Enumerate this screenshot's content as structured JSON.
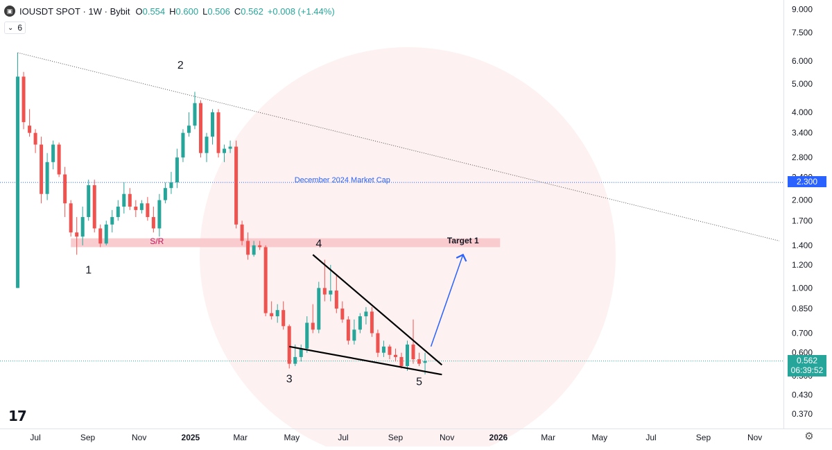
{
  "header": {
    "logo_icon": "coin-logo-icon",
    "symbol": "IOUSDT SPOT",
    "separator_1": "·",
    "interval": "1W",
    "separator_2": "·",
    "exchange": "Bybit",
    "open_label": "O",
    "open_value": "0.554",
    "high_label": "H",
    "high_value": "0.600",
    "low_label": "L",
    "low_value": "0.506",
    "close_label": "C",
    "close_value": "0.562",
    "change_value": "+0.008 (+1.44%)"
  },
  "indicator_chip": {
    "collapse_icon": "chevron-icon",
    "count": "6"
  },
  "branding": {
    "logo_text": "17",
    "settings_icon": "gear-icon"
  },
  "colors": {
    "up": "#26a69a",
    "down": "#ef5350",
    "current_price": "#26a69a",
    "blue_line": "#2962ff",
    "sr_zone": "#f8c4c8"
  },
  "price_tags": {
    "market_cap_price": "2.300",
    "last_price": "0.562",
    "countdown": "06:39:52"
  },
  "chart_data": {
    "type": "candlestick",
    "scale": "log",
    "ylim": [
      0.33,
      9.7
    ],
    "y_ticks": [
      "9.000",
      "7.500",
      "6.000",
      "5.000",
      "4.000",
      "3.400",
      "2.800",
      "2.400",
      "2.000",
      "1.700",
      "1.400",
      "1.200",
      "1.000",
      "0.850",
      "0.700",
      "0.600",
      "0.500",
      "0.430",
      "0.370"
    ],
    "x_ticks": [
      "Jul",
      "Sep",
      "Nov",
      "2025",
      "Mar",
      "May",
      "Jul",
      "Sep",
      "Nov",
      "2026",
      "Mar",
      "May",
      "Jul",
      "Sep",
      "Nov"
    ],
    "x_tick_dates": [
      "2024-07-01",
      "2024-09-01",
      "2024-11-01",
      "2025-01-01",
      "2025-03-01",
      "2025-05-01",
      "2025-07-01",
      "2025-09-01",
      "2025-11-01",
      "2026-01-01",
      "2026-03-01",
      "2026-05-01",
      "2026-07-01",
      "2026-09-01",
      "2026-11-01"
    ],
    "x_range": [
      "2024-05-20",
      "2026-12-05"
    ],
    "candles": [
      {
        "date": "2024-06-10",
        "o": 1.0,
        "h": 6.4,
        "l": 1.0,
        "c": 5.3
      },
      {
        "date": "2024-06-17",
        "o": 5.3,
        "h": 5.5,
        "l": 3.5,
        "c": 3.7
      },
      {
        "date": "2024-06-24",
        "o": 3.6,
        "h": 4.1,
        "l": 3.3,
        "c": 3.4
      },
      {
        "date": "2024-07-01",
        "o": 3.4,
        "h": 3.5,
        "l": 2.9,
        "c": 3.1
      },
      {
        "date": "2024-07-08",
        "o": 3.1,
        "h": 3.3,
        "l": 1.95,
        "c": 2.1
      },
      {
        "date": "2024-07-15",
        "o": 2.1,
        "h": 2.9,
        "l": 2.0,
        "c": 2.7
      },
      {
        "date": "2024-07-22",
        "o": 2.7,
        "h": 3.2,
        "l": 2.55,
        "c": 3.1
      },
      {
        "date": "2024-07-29",
        "o": 3.1,
        "h": 3.15,
        "l": 2.4,
        "c": 2.45
      },
      {
        "date": "2024-08-05",
        "o": 2.45,
        "h": 2.6,
        "l": 1.75,
        "c": 1.95
      },
      {
        "date": "2024-08-12",
        "o": 1.95,
        "h": 2.0,
        "l": 1.5,
        "c": 1.55
      },
      {
        "date": "2024-08-19",
        "o": 1.55,
        "h": 1.75,
        "l": 1.3,
        "c": 1.5
      },
      {
        "date": "2024-08-26",
        "o": 1.5,
        "h": 1.9,
        "l": 1.4,
        "c": 1.75
      },
      {
        "date": "2024-09-02",
        "o": 1.75,
        "h": 2.35,
        "l": 1.7,
        "c": 2.25
      },
      {
        "date": "2024-09-09",
        "o": 2.25,
        "h": 2.35,
        "l": 1.55,
        "c": 1.6
      },
      {
        "date": "2024-09-16",
        "o": 1.6,
        "h": 1.65,
        "l": 1.38,
        "c": 1.42
      },
      {
        "date": "2024-09-23",
        "o": 1.42,
        "h": 1.7,
        "l": 1.4,
        "c": 1.65
      },
      {
        "date": "2024-09-30",
        "o": 1.65,
        "h": 1.85,
        "l": 1.55,
        "c": 1.75
      },
      {
        "date": "2024-10-07",
        "o": 1.75,
        "h": 2.0,
        "l": 1.7,
        "c": 1.9
      },
      {
        "date": "2024-10-14",
        "o": 1.9,
        "h": 2.3,
        "l": 1.8,
        "c": 2.1
      },
      {
        "date": "2024-10-21",
        "o": 2.1,
        "h": 2.2,
        "l": 1.85,
        "c": 1.9
      },
      {
        "date": "2024-10-28",
        "o": 1.9,
        "h": 2.0,
        "l": 1.75,
        "c": 1.85
      },
      {
        "date": "2024-11-04",
        "o": 1.85,
        "h": 2.0,
        "l": 1.8,
        "c": 1.95
      },
      {
        "date": "2024-11-11",
        "o": 1.95,
        "h": 2.05,
        "l": 1.7,
        "c": 1.75
      },
      {
        "date": "2024-11-18",
        "o": 1.75,
        "h": 1.9,
        "l": 1.55,
        "c": 1.6
      },
      {
        "date": "2024-11-25",
        "o": 1.6,
        "h": 2.1,
        "l": 1.5,
        "c": 2.0
      },
      {
        "date": "2024-12-02",
        "o": 2.0,
        "h": 2.3,
        "l": 1.95,
        "c": 2.2
      },
      {
        "date": "2024-12-09",
        "o": 2.2,
        "h": 2.5,
        "l": 2.1,
        "c": 2.3
      },
      {
        "date": "2024-12-16",
        "o": 2.3,
        "h": 3.0,
        "l": 2.2,
        "c": 2.8
      },
      {
        "date": "2024-12-23",
        "o": 2.8,
        "h": 3.5,
        "l": 2.7,
        "c": 3.4
      },
      {
        "date": "2024-12-30",
        "o": 3.4,
        "h": 4.0,
        "l": 3.3,
        "c": 3.6
      },
      {
        "date": "2025-01-06",
        "o": 3.6,
        "h": 4.7,
        "l": 3.5,
        "c": 4.3
      },
      {
        "date": "2025-01-13",
        "o": 4.3,
        "h": 4.4,
        "l": 2.8,
        "c": 2.9
      },
      {
        "date": "2025-01-20",
        "o": 2.9,
        "h": 3.4,
        "l": 2.7,
        "c": 3.3
      },
      {
        "date": "2025-01-27",
        "o": 3.3,
        "h": 4.1,
        "l": 3.1,
        "c": 4.0
      },
      {
        "date": "2025-02-03",
        "o": 4.0,
        "h": 4.1,
        "l": 2.8,
        "c": 2.9
      },
      {
        "date": "2025-02-10",
        "o": 2.9,
        "h": 3.1,
        "l": 2.7,
        "c": 3.0
      },
      {
        "date": "2025-02-17",
        "o": 3.0,
        "h": 3.2,
        "l": 2.9,
        "c": 3.05
      },
      {
        "date": "2025-02-24",
        "o": 3.05,
        "h": 3.2,
        "l": 1.6,
        "c": 1.65
      },
      {
        "date": "2025-03-03",
        "o": 1.65,
        "h": 1.7,
        "l": 1.4,
        "c": 1.45
      },
      {
        "date": "2025-03-10",
        "o": 1.45,
        "h": 1.55,
        "l": 1.25,
        "c": 1.3
      },
      {
        "date": "2025-03-17",
        "o": 1.3,
        "h": 1.45,
        "l": 1.28,
        "c": 1.4
      },
      {
        "date": "2025-03-24",
        "o": 1.4,
        "h": 1.45,
        "l": 1.35,
        "c": 1.38
      },
      {
        "date": "2025-03-31",
        "o": 1.38,
        "h": 1.4,
        "l": 0.8,
        "c": 0.82
      },
      {
        "date": "2025-04-07",
        "o": 0.82,
        "h": 0.9,
        "l": 0.78,
        "c": 0.8
      },
      {
        "date": "2025-04-14",
        "o": 0.8,
        "h": 0.88,
        "l": 0.76,
        "c": 0.84
      },
      {
        "date": "2025-04-21",
        "o": 0.84,
        "h": 0.9,
        "l": 0.72,
        "c": 0.74
      },
      {
        "date": "2025-04-28",
        "o": 0.74,
        "h": 0.75,
        "l": 0.53,
        "c": 0.55
      },
      {
        "date": "2025-05-05",
        "o": 0.55,
        "h": 0.64,
        "l": 0.54,
        "c": 0.58
      },
      {
        "date": "2025-05-12",
        "o": 0.58,
        "h": 0.64,
        "l": 0.56,
        "c": 0.62
      },
      {
        "date": "2025-05-19",
        "o": 0.62,
        "h": 0.8,
        "l": 0.6,
        "c": 0.76
      },
      {
        "date": "2025-05-26",
        "o": 0.76,
        "h": 0.88,
        "l": 0.7,
        "c": 0.72
      },
      {
        "date": "2025-06-02",
        "o": 0.72,
        "h": 1.05,
        "l": 0.7,
        "c": 1.0
      },
      {
        "date": "2025-06-09",
        "o": 1.0,
        "h": 1.25,
        "l": 0.9,
        "c": 0.95
      },
      {
        "date": "2025-06-16",
        "o": 0.95,
        "h": 1.2,
        "l": 0.9,
        "c": 0.98
      },
      {
        "date": "2025-06-23",
        "o": 0.98,
        "h": 1.1,
        "l": 0.82,
        "c": 0.85
      },
      {
        "date": "2025-06-30",
        "o": 0.85,
        "h": 0.9,
        "l": 0.76,
        "c": 0.78
      },
      {
        "date": "2025-07-07",
        "o": 0.78,
        "h": 0.8,
        "l": 0.64,
        "c": 0.66
      },
      {
        "date": "2025-07-14",
        "o": 0.66,
        "h": 0.78,
        "l": 0.64,
        "c": 0.72
      },
      {
        "date": "2025-07-21",
        "o": 0.72,
        "h": 0.82,
        "l": 0.7,
        "c": 0.8
      },
      {
        "date": "2025-07-28",
        "o": 0.8,
        "h": 0.86,
        "l": 0.75,
        "c": 0.83
      },
      {
        "date": "2025-08-04",
        "o": 0.83,
        "h": 0.86,
        "l": 0.68,
        "c": 0.7
      },
      {
        "date": "2025-08-11",
        "o": 0.7,
        "h": 0.72,
        "l": 0.58,
        "c": 0.6
      },
      {
        "date": "2025-08-18",
        "o": 0.6,
        "h": 0.66,
        "l": 0.58,
        "c": 0.63
      },
      {
        "date": "2025-08-25",
        "o": 0.63,
        "h": 0.64,
        "l": 0.57,
        "c": 0.59
      },
      {
        "date": "2025-09-01",
        "o": 0.59,
        "h": 0.62,
        "l": 0.56,
        "c": 0.58
      },
      {
        "date": "2025-09-08",
        "o": 0.58,
        "h": 0.6,
        "l": 0.53,
        "c": 0.54
      },
      {
        "date": "2025-09-15",
        "o": 0.54,
        "h": 0.66,
        "l": 0.52,
        "c": 0.64
      },
      {
        "date": "2025-09-22",
        "o": 0.64,
        "h": 0.78,
        "l": 0.55,
        "c": 0.57
      },
      {
        "date": "2025-09-29",
        "o": 0.57,
        "h": 0.6,
        "l": 0.54,
        "c": 0.55
      },
      {
        "date": "2025-10-06",
        "o": 0.554,
        "h": 0.6,
        "l": 0.506,
        "c": 0.562
      }
    ],
    "lines": [
      {
        "name": "descending-trendline",
        "style": "dotted",
        "from": [
          "2024-06-10",
          6.4
        ],
        "to": [
          "2026-11-30",
          1.45
        ]
      },
      {
        "name": "wedge-upper",
        "style": "solid",
        "from": [
          "2025-05-26",
          1.3
        ],
        "to": [
          "2025-10-26",
          0.545
        ]
      },
      {
        "name": "wedge-lower",
        "style": "solid",
        "from": [
          "2025-04-28",
          0.63
        ],
        "to": [
          "2025-10-26",
          0.505
        ]
      },
      {
        "name": "target-arrow",
        "style": "arrow",
        "from": [
          "2025-10-13",
          0.63
        ],
        "to": [
          "2025-11-20",
          1.3
        ]
      }
    ],
    "zones": [
      {
        "name": "sr-zone",
        "from": "2024-08-12",
        "to": "2026-01-03",
        "low": 1.38,
        "high": 1.48
      }
    ],
    "hlines": [
      {
        "name": "market-cap-line",
        "y": 2.3,
        "style": "dotted"
      },
      {
        "name": "current-price-line",
        "y": 0.562,
        "style": "dotted"
      }
    ],
    "annotations": [
      {
        "text": "1",
        "date": "2024-09-02",
        "y": 1.12
      },
      {
        "text": "2",
        "date": "2024-12-20",
        "y": 5.65
      },
      {
        "text": "3",
        "date": "2025-04-28",
        "y": 0.475
      },
      {
        "text": "4",
        "date": "2025-06-02",
        "y": 1.38
      },
      {
        "text": "5",
        "date": "2025-09-29",
        "y": 0.465
      },
      {
        "text": "S/R",
        "date": "2024-11-22",
        "y": 1.415
      },
      {
        "text": "Target 1",
        "date": "2025-11-20",
        "y": 1.42
      },
      {
        "text": "December 2024 Market Cap",
        "date": "2025-06-30",
        "y": 2.3
      }
    ]
  }
}
